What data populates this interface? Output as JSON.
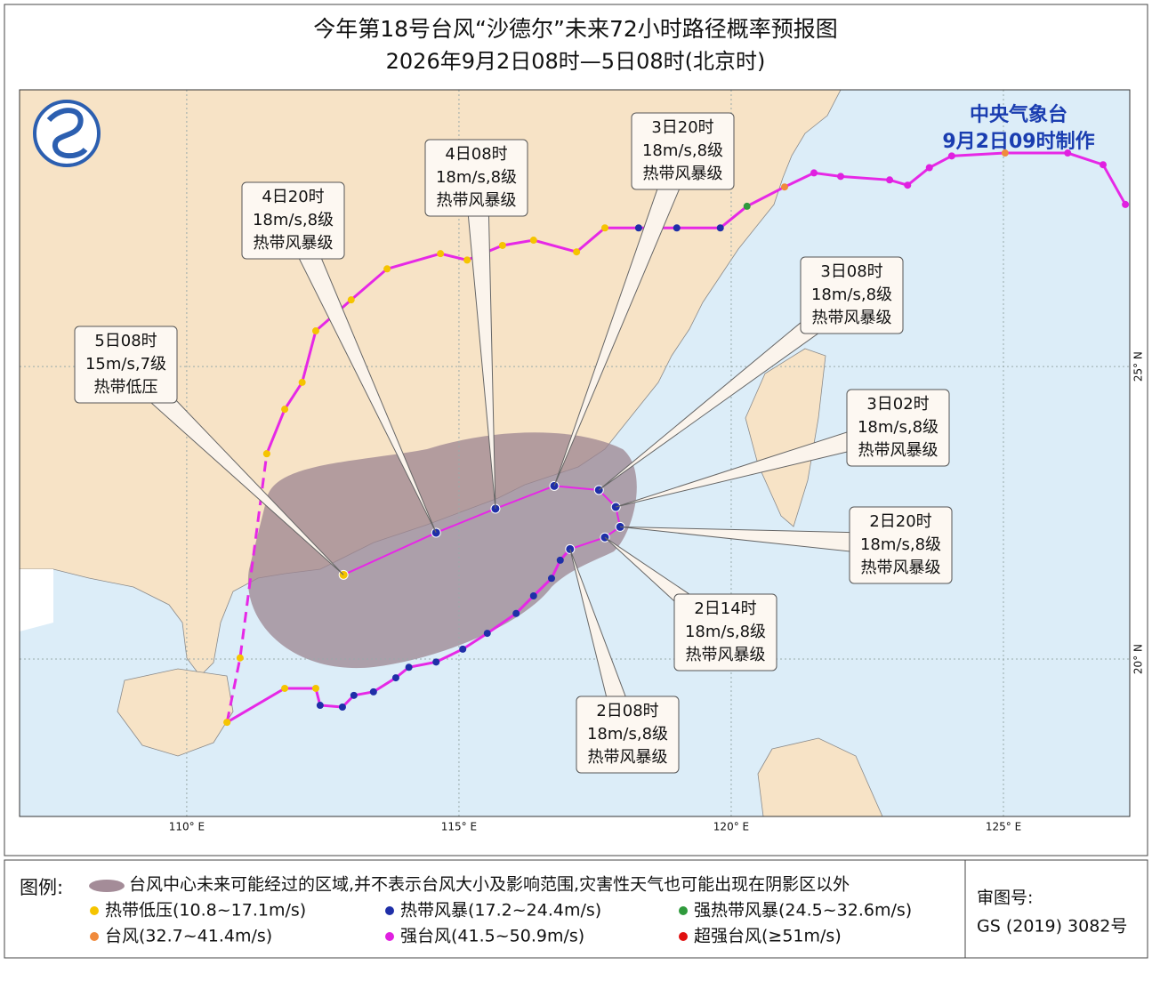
{
  "title": "今年第18号台风“沙德尔”未来72小时路径概率预报图",
  "subtitle": "2026年9月2日08时—5日08时(北京时)",
  "agency": "中央气象台",
  "issued": "9月2日09时制作",
  "map": {
    "xlim": [
      106.93,
      127.32
    ],
    "ylim": [
      17.31,
      29.73
    ],
    "xticks": [
      {
        "value": 110,
        "label": "110° E"
      },
      {
        "value": 115,
        "label": "115° E"
      },
      {
        "value": 120,
        "label": "120° E"
      },
      {
        "value": 125,
        "label": "125° E"
      }
    ],
    "yticks": [
      {
        "value": 20,
        "label": "20° N"
      },
      {
        "value": 25,
        "label": "25° N"
      }
    ]
  },
  "track_color": "#e628e6",
  "forecast": [
    {
      "time": "2日08时",
      "wind": "18m/s,8级",
      "grade": "热带风暴级",
      "lon": 117.04,
      "lat": 21.88,
      "color": "#1f2fa8"
    },
    {
      "time": "2日14时",
      "wind": "18m/s,8级",
      "grade": "热带风暴级",
      "lon": 117.68,
      "lat": 22.08,
      "color": "#1f2fa8"
    },
    {
      "time": "2日20时",
      "wind": "18m/s,8级",
      "grade": "热带风暴级",
      "lon": 117.96,
      "lat": 22.26,
      "color": "#1f2fa8"
    },
    {
      "time": "3日02时",
      "wind": "18m/s,8级",
      "grade": "热带风暴级",
      "lon": 117.88,
      "lat": 22.6,
      "color": "#1f2fa8"
    },
    {
      "time": "3日08时",
      "wind": "18m/s,8级",
      "grade": "热带风暴级",
      "lon": 117.57,
      "lat": 22.89,
      "color": "#1f2fa8"
    },
    {
      "time": "3日20时",
      "wind": "18m/s,8级",
      "grade": "热带风暴级",
      "lon": 116.75,
      "lat": 22.96,
      "color": "#1f2fa8"
    },
    {
      "time": "4日08时",
      "wind": "18m/s,8级",
      "grade": "热带风暴级",
      "lon": 115.67,
      "lat": 22.57,
      "color": "#1f2fa8"
    },
    {
      "time": "4日20时",
      "wind": "18m/s,8级",
      "grade": "热带风暴级",
      "lon": 114.58,
      "lat": 22.16,
      "color": "#1f2fa8"
    },
    {
      "time": "5日08时",
      "wind": "15m/s,7级",
      "grade": "热带低压",
      "lon": 112.88,
      "lat": 21.44,
      "color": "#f5c400"
    }
  ],
  "past_track": [
    {
      "style": "solid",
      "points": [
        {
          "lon": 117.04,
          "lat": 21.88,
          "color": "#1f2fa8"
        },
        {
          "lon": 116.86,
          "lat": 21.69,
          "color": "#1f2fa8"
        },
        {
          "lon": 116.7,
          "lat": 21.38,
          "color": "#1f2fa8"
        },
        {
          "lon": 116.37,
          "lat": 21.08,
          "color": "#1f2fa8"
        },
        {
          "lon": 116.05,
          "lat": 20.78,
          "color": "#1f2fa8"
        },
        {
          "lon": 115.52,
          "lat": 20.44,
          "color": "#1f2fa8"
        },
        {
          "lon": 115.07,
          "lat": 20.17,
          "color": "#1f2fa8"
        },
        {
          "lon": 114.58,
          "lat": 19.95,
          "color": "#1f2fa8"
        },
        {
          "lon": 114.08,
          "lat": 19.86,
          "color": "#1f2fa8"
        },
        {
          "lon": 113.84,
          "lat": 19.68,
          "color": "#1f2fa8"
        },
        {
          "lon": 113.43,
          "lat": 19.44,
          "color": "#1f2fa8"
        },
        {
          "lon": 113.07,
          "lat": 19.38,
          "color": "#1f2fa8"
        },
        {
          "lon": 112.86,
          "lat": 19.18,
          "color": "#1f2fa8"
        },
        {
          "lon": 112.45,
          "lat": 19.21,
          "color": "#1f2fa8"
        },
        {
          "lon": 112.37,
          "lat": 19.5,
          "color": "#f5c400"
        },
        {
          "lon": 111.8,
          "lat": 19.5,
          "color": "#f5c400"
        },
        {
          "lon": 110.74,
          "lat": 18.92,
          "color": "#f5c400"
        }
      ]
    },
    {
      "style": "dashed",
      "points": [
        {
          "lon": 110.74,
          "lat": 18.92,
          "color": "#f5c400"
        },
        {
          "lon": 110.98,
          "lat": 20.02,
          "color": "#f5c400"
        },
        {
          "lon": 111.47,
          "lat": 23.51,
          "color": "#f5c400"
        }
      ]
    },
    {
      "style": "solid",
      "points": [
        {
          "lon": 111.47,
          "lat": 23.51,
          "color": "#f5c400"
        },
        {
          "lon": 111.8,
          "lat": 24.27,
          "color": "#f5c400"
        },
        {
          "lon": 112.12,
          "lat": 24.73,
          "color": "#f5c400"
        },
        {
          "lon": 112.37,
          "lat": 25.61,
          "color": "#f5c400"
        },
        {
          "lon": 113.02,
          "lat": 26.14,
          "color": "#f5c400"
        },
        {
          "lon": 113.68,
          "lat": 26.67,
          "color": "#f5c400"
        },
        {
          "lon": 114.66,
          "lat": 26.93,
          "color": "#f5c400"
        },
        {
          "lon": 115.15,
          "lat": 26.82,
          "color": "#f5c400"
        },
        {
          "lon": 115.8,
          "lat": 27.07,
          "color": "#f5c400"
        },
        {
          "lon": 116.37,
          "lat": 27.16,
          "color": "#f5c400"
        },
        {
          "lon": 117.16,
          "lat": 26.96,
          "color": "#f5c400"
        },
        {
          "lon": 117.68,
          "lat": 27.37,
          "color": "#f5c400"
        },
        {
          "lon": 118.3,
          "lat": 27.37,
          "color": "#1f2fa8"
        },
        {
          "lon": 119.0,
          "lat": 27.37,
          "color": "#1f2fa8"
        },
        {
          "lon": 119.8,
          "lat": 27.37,
          "color": "#1f2fa8"
        },
        {
          "lon": 120.29,
          "lat": 27.74,
          "color": "#2f9a3c"
        },
        {
          "lon": 120.98,
          "lat": 28.07,
          "color": "#f08a3c"
        },
        {
          "lon": 121.52,
          "lat": 28.31,
          "color": "#e020e0"
        },
        {
          "lon": 122.01,
          "lat": 28.25,
          "color": "#e020e0"
        },
        {
          "lon": 122.91,
          "lat": 28.19,
          "color": "#e020e0"
        },
        {
          "lon": 123.24,
          "lat": 28.1,
          "color": "#e020e0"
        },
        {
          "lon": 123.64,
          "lat": 28.4,
          "color": "#e020e0"
        },
        {
          "lon": 124.05,
          "lat": 28.6,
          "color": "#e020e0"
        },
        {
          "lon": 125.03,
          "lat": 28.65,
          "color": "#f08a3c"
        },
        {
          "lon": 126.18,
          "lat": 28.65,
          "color": "#e020e0"
        },
        {
          "lon": 126.83,
          "lat": 28.45,
          "color": "#e020e0"
        },
        {
          "lon": 127.24,
          "lat": 27.77,
          "color": "#e020e0"
        }
      ]
    }
  ],
  "legend": {
    "title": "图例:",
    "cone": "台风中心未来可能经过的区域,并不表示台风大小及影响范围,灾害性天气也可能出现在阴影区以外",
    "cone_color": "#a48c98",
    "levels": [
      {
        "name": "热带低压(10.8~17.1m/s)",
        "color": "#f5c400"
      },
      {
        "name": "热带风暴(17.2~24.4m/s)",
        "color": "#1f2fa8"
      },
      {
        "name": "强热带风暴(24.5~32.6m/s)",
        "color": "#2f9a3c"
      },
      {
        "name": "台风(32.7~41.4m/s)",
        "color": "#f08a3c"
      },
      {
        "name": "强台风(41.5~50.9m/s)",
        "color": "#e020e0"
      },
      {
        "name": "超强台风(≥51m/s)",
        "color": "#e01010"
      }
    ]
  },
  "review": {
    "label": "审图号:",
    "number": "GS (2019) 3082号"
  }
}
